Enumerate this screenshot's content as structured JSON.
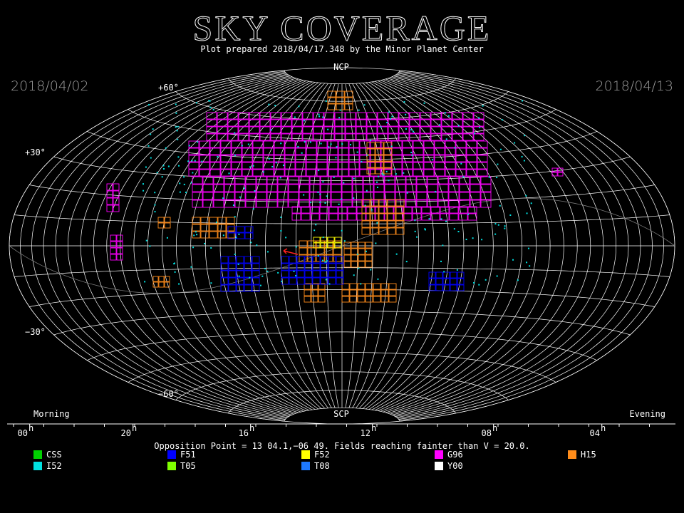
{
  "header": {
    "title": "SKY COVERAGE",
    "subtitle": "Plot prepared 2018/04/17.348 by the Minor Planet Center"
  },
  "dates": {
    "left": "2018/04/02",
    "right": "2018/04/13"
  },
  "poles": {
    "north": "NCP",
    "south": "SCP"
  },
  "declination_labels": [
    "+60°",
    "+30°",
    "−30°",
    "−60°"
  ],
  "sides": {
    "left": "Morning",
    "right": "Evening"
  },
  "hour_axis": {
    "labels": [
      "00",
      "20",
      "16",
      "12",
      "08",
      "04"
    ],
    "unit": "h"
  },
  "note": "Opposition Point = 13 04.1,−06 49.  Fields reaching fainter than V = 20.0.",
  "legend": [
    {
      "code": "CSS",
      "color": "#00d000"
    },
    {
      "code": "F51",
      "color": "#0000ff"
    },
    {
      "code": "F52",
      "color": "#ffff00"
    },
    {
      "code": "G96",
      "color": "#ff00ff"
    },
    {
      "code": "H15",
      "color": "#ff8c1a"
    },
    {
      "code": "I52",
      "color": "#00e0e0"
    },
    {
      "code": "T05",
      "color": "#80ff00"
    },
    {
      "code": "T08",
      "color": "#1e78ff"
    },
    {
      "code": "Y00",
      "color": "#ffffff"
    }
  ]
}
